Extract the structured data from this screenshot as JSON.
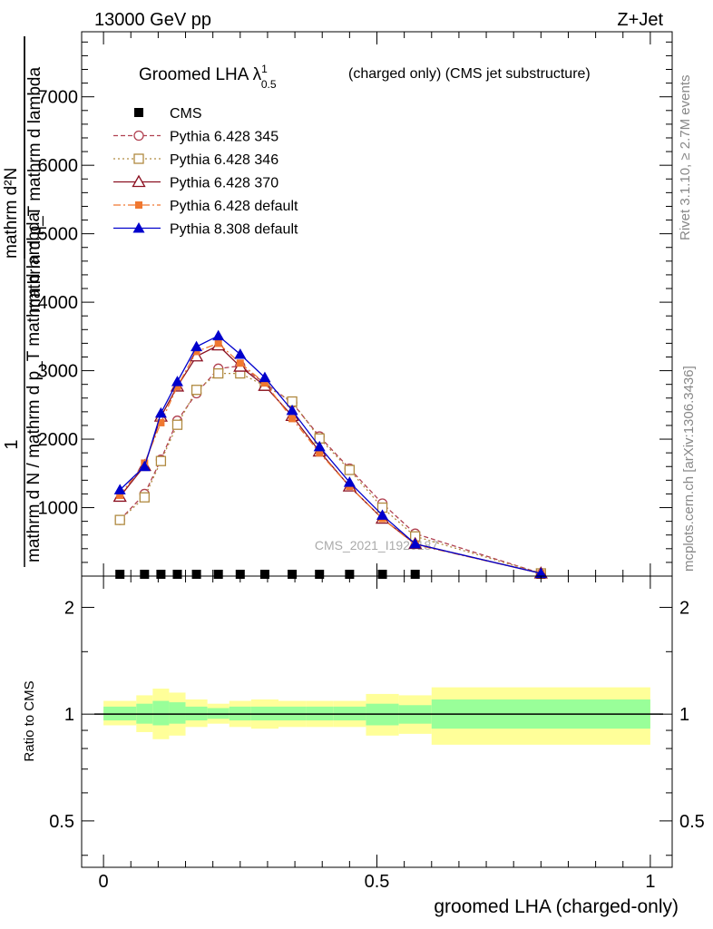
{
  "header": {
    "left": "13000 GeV pp",
    "right": "Z+Jet"
  },
  "side_labels": {
    "rivet": "Rivet 3.1.10, ≥ 2.7M events",
    "mcplots": "mcplots.cern.ch [arXiv:1306.3436]"
  },
  "watermark": "CMS_2021_I1920187",
  "chart_data": [
    {
      "type": "line",
      "title": {
        "main": "Groomed LHA λ",
        "sup": "1",
        "sub": "0.5",
        "rest": "(charged only) (CMS jet substructure)"
      },
      "ylabel": {
        "frac_num": "1",
        "frac_den": "mathrm d N / mathrm d p_T mathrm d lambda",
        "numerator": "mathrm d²N",
        "denominator": "mathrm d p_T mathrm d lambda"
      },
      "xlim": [
        -0.04,
        1.04
      ],
      "ylim": [
        0,
        7950
      ],
      "yticks": [
        {
          "value": 1000,
          "label": "1000"
        },
        {
          "value": 2000,
          "label": "2000"
        },
        {
          "value": 3000,
          "label": "3000"
        },
        {
          "value": 4000,
          "label": "4000"
        },
        {
          "value": 5000,
          "label": "5000"
        },
        {
          "value": 6000,
          "label": "6000"
        },
        {
          "value": 7000,
          "label": "7000"
        }
      ],
      "legend_position": "top-left",
      "x": [
        0.03,
        0.075,
        0.105,
        0.135,
        0.17,
        0.21,
        0.25,
        0.295,
        0.345,
        0.395,
        0.45,
        0.51,
        0.57,
        0.8
      ],
      "series": [
        {
          "name": "CMS",
          "color": "#000000",
          "marker": "square-filled",
          "dash": "none",
          "values": [
            5,
            5,
            5,
            5,
            5,
            5,
            5,
            5,
            5,
            5,
            5,
            5,
            5,
            5
          ]
        },
        {
          "name": "Pythia 6.428 345",
          "color": "#b04050",
          "marker": "circle-open",
          "dash": "5,3",
          "values": [
            820,
            1200,
            1700,
            2270,
            2670,
            3030,
            3070,
            2820,
            2530,
            2040,
            1570,
            1060,
            620,
            40
          ]
        },
        {
          "name": "Pythia 6.428 346",
          "color": "#b08a40",
          "marker": "square-open",
          "dash": "2,3",
          "values": [
            820,
            1150,
            1680,
            2210,
            2720,
            2960,
            2960,
            2780,
            2550,
            2010,
            1550,
            1000,
            580,
            40
          ]
        },
        {
          "name": "Pythia 6.428 370",
          "color": "#8b1020",
          "marker": "triangle-open",
          "dash": "none",
          "values": [
            1160,
            1610,
            2330,
            2770,
            3210,
            3370,
            3060,
            2780,
            2340,
            1820,
            1310,
            840,
            470,
            40
          ]
        },
        {
          "name": "Pythia 6.428 default",
          "color": "#f07830",
          "marker": "square-filled-small",
          "dash": "8,3,2,3",
          "values": [
            1180,
            1650,
            2240,
            2770,
            3280,
            3400,
            3110,
            2820,
            2300,
            1800,
            1310,
            840,
            460,
            40
          ]
        },
        {
          "name": "Pythia 8.308 default",
          "color": "#0000cc",
          "marker": "triangle-filled",
          "dash": "none",
          "values": [
            1260,
            1600,
            2380,
            2840,
            3350,
            3510,
            3240,
            2900,
            2420,
            1890,
            1370,
            890,
            470,
            40
          ]
        }
      ]
    },
    {
      "type": "area",
      "ylabel": "Ratio to CMS",
      "xlabel": "groomed LHA (charged-only)",
      "xlim": [
        -0.04,
        1.04
      ],
      "ylim": [
        0.37,
        2.45
      ],
      "log_y": true,
      "yticks": [
        {
          "value": 0.5,
          "label": "0.5"
        },
        {
          "value": 1,
          "label": "1"
        },
        {
          "value": 2,
          "label": "2"
        }
      ],
      "xticks": [
        {
          "value": 0,
          "label": "0"
        },
        {
          "value": 0.5,
          "label": "0.5"
        },
        {
          "value": 1,
          "label": "1"
        }
      ],
      "bands": {
        "inner_color": "#99ff99",
        "outer_color": "#ffff99",
        "bins": [
          {
            "x0": 0.0,
            "x1": 0.06,
            "inner": [
              0.96,
              1.05
            ],
            "outer": [
              0.93,
              1.09
            ]
          },
          {
            "x0": 0.06,
            "x1": 0.09,
            "inner": [
              0.94,
              1.07
            ],
            "outer": [
              0.89,
              1.13
            ]
          },
          {
            "x0": 0.09,
            "x1": 0.12,
            "inner": [
              0.93,
              1.09
            ],
            "outer": [
              0.85,
              1.18
            ]
          },
          {
            "x0": 0.12,
            "x1": 0.15,
            "inner": [
              0.94,
              1.08
            ],
            "outer": [
              0.87,
              1.15
            ]
          },
          {
            "x0": 0.15,
            "x1": 0.19,
            "inner": [
              0.96,
              1.05
            ],
            "outer": [
              0.92,
              1.1
            ]
          },
          {
            "x0": 0.19,
            "x1": 0.23,
            "inner": [
              0.97,
              1.04
            ],
            "outer": [
              0.94,
              1.07
            ]
          },
          {
            "x0": 0.23,
            "x1": 0.27,
            "inner": [
              0.96,
              1.05
            ],
            "outer": [
              0.92,
              1.09
            ]
          },
          {
            "x0": 0.27,
            "x1": 0.32,
            "inner": [
              0.96,
              1.05
            ],
            "outer": [
              0.91,
              1.1
            ]
          },
          {
            "x0": 0.32,
            "x1": 0.37,
            "inner": [
              0.96,
              1.05
            ],
            "outer": [
              0.92,
              1.09
            ]
          },
          {
            "x0": 0.37,
            "x1": 0.42,
            "inner": [
              0.96,
              1.05
            ],
            "outer": [
              0.92,
              1.09
            ]
          },
          {
            "x0": 0.42,
            "x1": 0.48,
            "inner": [
              0.96,
              1.05
            ],
            "outer": [
              0.92,
              1.09
            ]
          },
          {
            "x0": 0.48,
            "x1": 0.54,
            "inner": [
              0.93,
              1.07
            ],
            "outer": [
              0.87,
              1.14
            ]
          },
          {
            "x0": 0.54,
            "x1": 0.6,
            "inner": [
              0.94,
              1.06
            ],
            "outer": [
              0.88,
              1.13
            ]
          },
          {
            "x0": 0.6,
            "x1": 1.0,
            "inner": [
              0.91,
              1.1
            ],
            "outer": [
              0.82,
              1.19
            ]
          }
        ]
      }
    }
  ]
}
